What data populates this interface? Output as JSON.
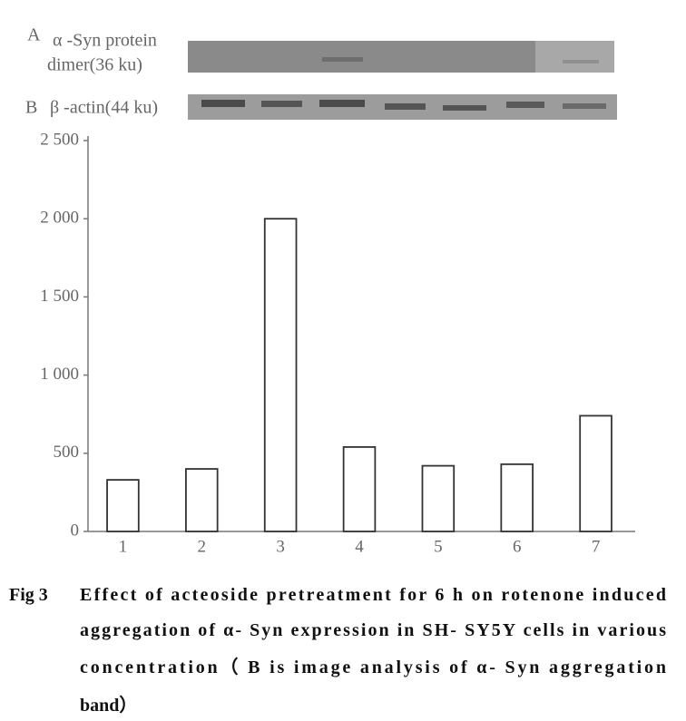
{
  "chart_data": {
    "type": "bar",
    "panel_labels": [
      {
        "letter": "A",
        "lines": [
          "α -Syn protein",
          "dimer(36 ku)"
        ]
      },
      {
        "letter": "B",
        "lines": [
          "β -actin(44 ku)"
        ]
      }
    ],
    "categories": [
      "1",
      "2",
      "3",
      "4",
      "5",
      "6",
      "7"
    ],
    "values": [
      330,
      400,
      2000,
      540,
      420,
      430,
      740
    ],
    "color": "#333333",
    "ylim": [
      0,
      2500
    ],
    "yticks": [
      0,
      500,
      {
        "value": 1000,
        "label": "1 000"
      },
      {
        "value": 1500,
        "label": "1 500"
      },
      {
        "value": 2000,
        "label": "2 000"
      },
      {
        "value": 2500,
        "label": "2 500"
      }
    ],
    "caption": {
      "label": "Fig 3",
      "lines": [
        "Effect of acteoside pretreatment for 6 h on rotenone induced",
        "aggregation of α- Syn expression in SH- SY5Y cells in various",
        "concentration（ B is image analysis of α- Syn aggregation",
        "band）"
      ]
    }
  }
}
